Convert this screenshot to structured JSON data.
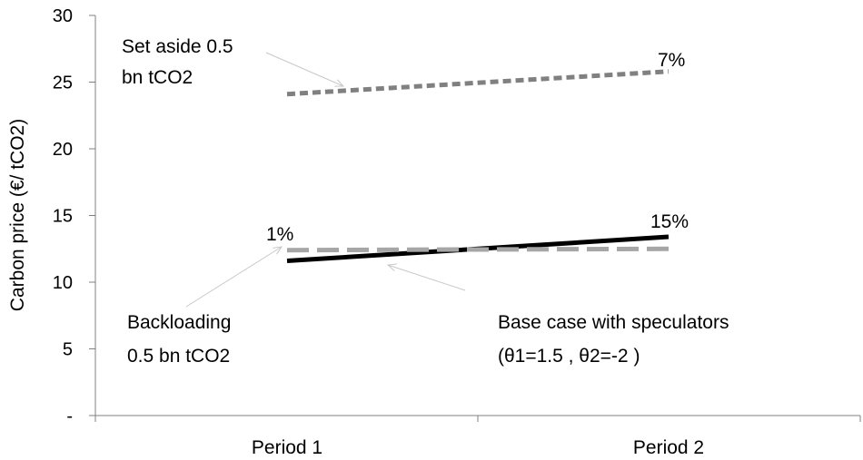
{
  "chart_data": {
    "type": "line",
    "title": "",
    "xlabel": "",
    "ylabel": "Carbon price (€/ tCO2)",
    "ylim": [
      0,
      30
    ],
    "yticks": [
      0,
      5,
      10,
      15,
      20,
      25,
      30
    ],
    "ytick_labels": [
      "-",
      "5",
      "10",
      "15",
      "20",
      "25",
      "30"
    ],
    "categories": [
      "Period 1",
      "Period 2"
    ],
    "grid": false,
    "legend": "none",
    "series": [
      {
        "values": [
          24.1,
          25.8
        ],
        "color": "#808080",
        "style": "short-dash"
      },
      {
        "values": [
          11.6,
          13.4
        ],
        "color": "#000000",
        "style": "solid"
      },
      {
        "values": [
          12.4,
          12.5
        ],
        "color": "#a6a6a6",
        "style": "long-dash"
      }
    ],
    "annotations": [
      {
        "text_lines": [
          "Set aside 0.5",
          "bn tCO2"
        ],
        "arrow_color": "#c8c8c8"
      },
      {
        "text_lines": [
          "Backloading",
          "0.5 bn tCO2"
        ],
        "arrow_color": "#c8c8c8"
      },
      {
        "text_lines": [
          "Base case with speculators",
          "(θ1=1.5 , θ2=-2 )"
        ],
        "arrow_color": "#c8c8c8"
      }
    ],
    "point_labels": [
      {
        "text": "7%"
      },
      {
        "text": "1%"
      },
      {
        "text": "15%"
      }
    ]
  }
}
